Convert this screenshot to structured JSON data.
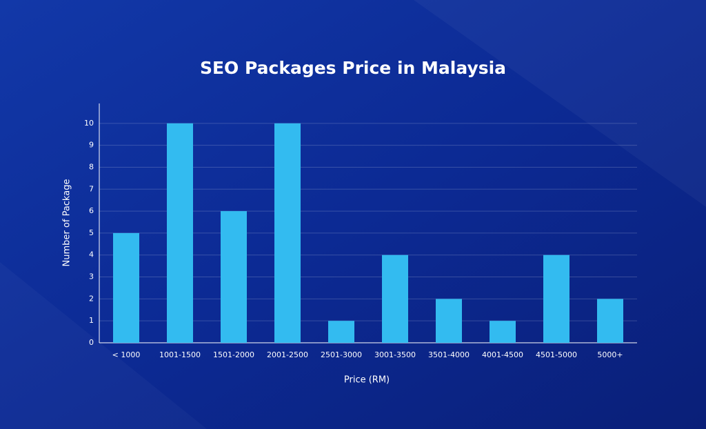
{
  "chart_data": {
    "type": "bar",
    "title": "SEO Packages Price in Malaysia",
    "x_label": "Price (RM)",
    "y_label": "Number of Package",
    "categories": [
      "< 1000",
      "1001-1500",
      "1501-2000",
      "2001-2500",
      "2501-3000",
      "3001-3500",
      "3501-4000",
      "4001-4500",
      "4501-5000",
      "5000+"
    ],
    "values": [
      5,
      10,
      6,
      10,
      1,
      4,
      2,
      1,
      4,
      2
    ],
    "color": "#33bbf0",
    "ylim": [
      0,
      11
    ],
    "yticks": [
      0,
      1,
      2,
      3,
      4,
      5,
      6,
      7,
      8,
      9,
      10
    ],
    "grid": true
  }
}
